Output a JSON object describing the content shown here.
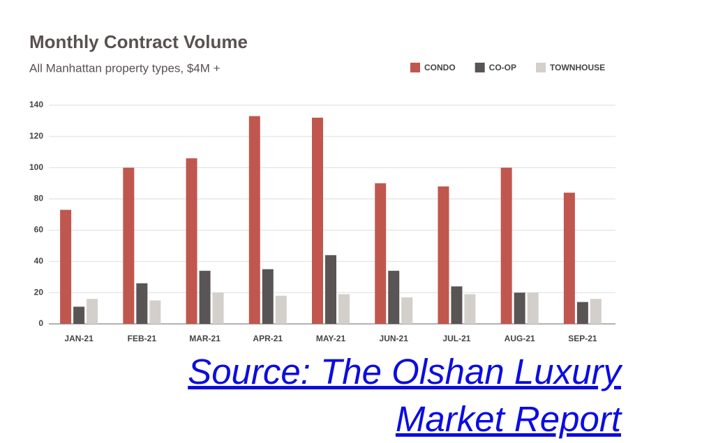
{
  "chart_data": {
    "type": "bar",
    "title": "Monthly Contract Volume",
    "subtitle": "All Manhattan property types, $4M +",
    "categories": [
      "JAN-21",
      "FEB-21",
      "MAR-21",
      "APR-21",
      "MAY-21",
      "JUN-21",
      "JUL-21",
      "AUG-21",
      "SEP-21"
    ],
    "series": [
      {
        "name": "CONDO",
        "color": "#c0574f",
        "values": [
          73,
          100,
          106,
          133,
          132,
          90,
          88,
          100,
          84
        ]
      },
      {
        "name": "CO-OP",
        "color": "#5a5555",
        "values": [
          11,
          26,
          34,
          35,
          44,
          34,
          24,
          20,
          14
        ]
      },
      {
        "name": "TOWNHOUSE",
        "color": "#d3cfcb",
        "values": [
          16,
          15,
          20,
          18,
          19,
          17,
          19,
          20,
          16
        ]
      }
    ],
    "ylim": [
      0,
      140
    ],
    "yticks": [
      0,
      20,
      40,
      60,
      80,
      100,
      120,
      140
    ],
    "grid": true,
    "legend": "top-right"
  },
  "source_link": "Source: The Olshan Luxury Market Report"
}
